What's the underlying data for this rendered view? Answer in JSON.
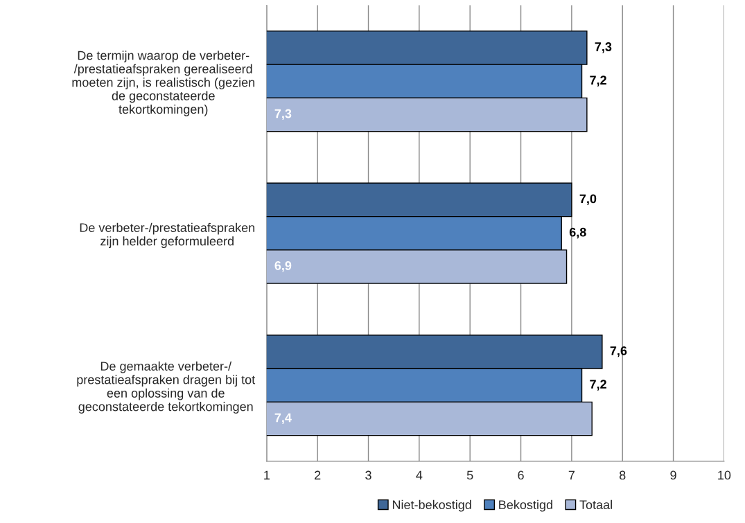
{
  "chart_data": {
    "type": "bar",
    "orientation": "horizontal",
    "categories": [
      "De termijn waarop de verbeter-\n/prestatieafspraken gerealiseerd\nmoeten zijn, is realistisch (gezien\nde geconstateerde\ntekortkomingen)",
      "De verbeter-/prestatieafspraken\nzijn helder geformuleerd",
      "De gemaakte verbeter-/\nprestatieafspraken dragen bij tot\neen oplossing van de\ngeconstateerde tekortkomingen"
    ],
    "series": [
      {
        "name": "Niet-bekostigd",
        "color": "#3f6797",
        "values": [
          7.3,
          7.0,
          7.6
        ],
        "value_labels": [
          "7,3",
          "7,0",
          "7,6"
        ]
      },
      {
        "name": "Bekostigd",
        "color": "#4f81bd",
        "values": [
          7.2,
          6.8,
          7.2
        ],
        "value_labels": [
          "7,2",
          "6,8",
          "7,2"
        ]
      },
      {
        "name": "Totaal",
        "color": "#a9b8d8",
        "values": [
          7.3,
          6.9,
          7.4
        ],
        "value_labels": [
          "7,3",
          "6,9",
          "7,4"
        ]
      }
    ],
    "xlim": [
      1,
      10
    ],
    "xticks": [
      1,
      2,
      3,
      4,
      5,
      6,
      7,
      8,
      9,
      10
    ],
    "grid": "x",
    "legend": "bottom"
  }
}
